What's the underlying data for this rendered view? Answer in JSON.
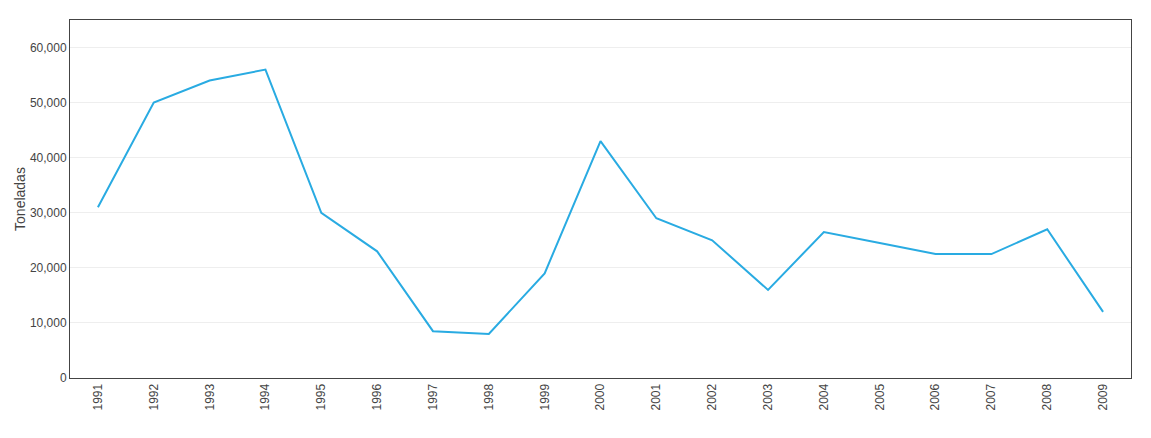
{
  "chart_data": {
    "type": "line",
    "x": [
      1991,
      1992,
      1993,
      1994,
      1995,
      1996,
      1997,
      1998,
      1999,
      2000,
      2001,
      2002,
      2003,
      2004,
      2005,
      2006,
      2007,
      2008,
      2009
    ],
    "values": [
      31000,
      50000,
      54000,
      56000,
      30000,
      23000,
      8500,
      8000,
      19000,
      43000,
      29000,
      25000,
      16000,
      26500,
      24500,
      22500,
      22500,
      27000,
      12000
    ],
    "color": "#29ABE2",
    "ylabel": "Toneladas",
    "xlim": [
      1990.5,
      2009.5
    ],
    "xticks": [
      1991,
      1992,
      1993,
      1994,
      1995,
      1996,
      1997,
      1998,
      1999,
      2000,
      2001,
      2002,
      2003,
      2004,
      2005,
      2006,
      2007,
      2008,
      2009
    ],
    "ylim": [
      0,
      65000
    ],
    "yticks": [
      0,
      {
        "value": 10000,
        "label": "10,000"
      },
      {
        "value": 20000,
        "label": "20,000"
      },
      {
        "value": 30000,
        "label": "30,000"
      },
      {
        "value": 40000,
        "label": "40,000"
      },
      {
        "value": 50000,
        "label": "50,000"
      },
      {
        "value": 60000,
        "label": "60,000"
      }
    ],
    "grid": "y"
  }
}
